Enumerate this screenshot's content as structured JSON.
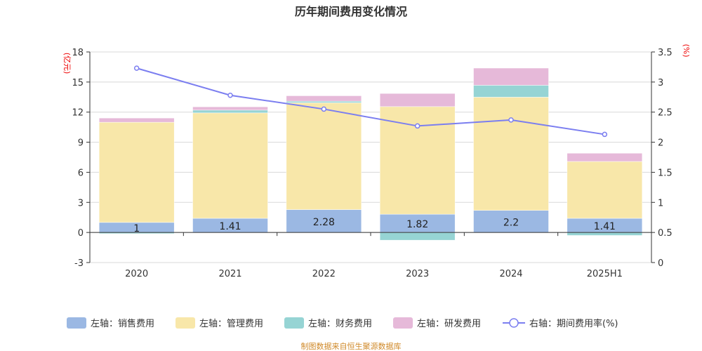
{
  "chart_data": {
    "type": "bar",
    "title": "历年期间费用变化情况",
    "categories": [
      "2020",
      "2021",
      "2022",
      "2023",
      "2024",
      "2025H1"
    ],
    "left_axis": {
      "unit": "(亿元)",
      "ylim": [
        -3,
        18
      ],
      "ticks": [
        -3,
        0,
        3,
        6,
        9,
        12,
        15,
        18
      ]
    },
    "right_axis": {
      "unit": "(%)",
      "ylim": [
        0,
        3.5
      ],
      "ticks": [
        0,
        0.5,
        1,
        1.5,
        2,
        2.5,
        3,
        3.5
      ]
    },
    "grid": true,
    "legend_position": "bottom",
    "series": [
      {
        "name": "左轴：销售费用",
        "type": "bar",
        "stack": true,
        "color": "#9bb8e3",
        "values": [
          1,
          1.41,
          2.28,
          1.82,
          2.2,
          1.41
        ],
        "labels": [
          "1",
          "1.41",
          "2.28",
          "1.82",
          "2.2",
          "1.41"
        ]
      },
      {
        "name": "左轴：管理费用",
        "type": "bar",
        "stack": true,
        "color": "#f8e7a9",
        "values": [
          9.99,
          10.51,
          10.65,
          10.73,
          11.29,
          5.67
        ]
      },
      {
        "name": "左轴：财务费用",
        "type": "bar",
        "stack": true,
        "color": "#96d4d4",
        "values": [
          -0.12,
          0.28,
          0.16,
          -0.77,
          1.19,
          -0.3
        ]
      },
      {
        "name": "左轴：研发费用",
        "type": "bar",
        "stack": true,
        "color": "#e6b9d9",
        "values": [
          0.42,
          0.33,
          0.54,
          1.31,
          1.71,
          0.82
        ]
      },
      {
        "name": "右轴：期间费用率(%)",
        "type": "line",
        "axis": "right",
        "color": "#7b7ef0",
        "values": [
          3.23,
          2.78,
          2.55,
          2.27,
          2.37,
          2.13
        ]
      }
    ]
  },
  "source": "制图数据来自恒生聚源数据库"
}
